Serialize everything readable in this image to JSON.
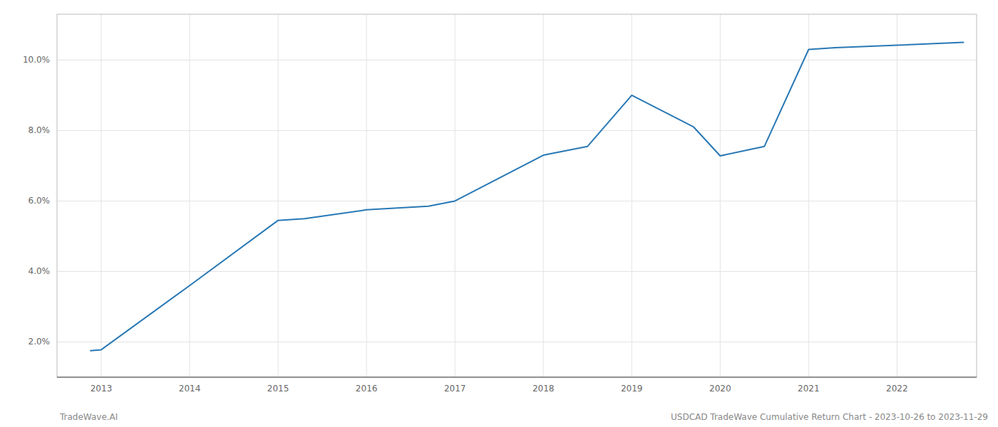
{
  "chart_data": {
    "type": "line",
    "x": [
      2012.88,
      2013,
      2014,
      2015,
      2015.3,
      2016,
      2016.7,
      2017,
      2018,
      2018.5,
      2019,
      2019.7,
      2020,
      2020.5,
      2021,
      2021.3,
      2022,
      2022.75
    ],
    "values": [
      1.75,
      1.78,
      3.6,
      5.45,
      5.5,
      5.75,
      5.85,
      6.0,
      7.3,
      7.55,
      9.0,
      8.1,
      7.28,
      7.55,
      10.3,
      10.35,
      10.42,
      10.5
    ],
    "color": "#2878b5",
    "xlim": [
      2012.5,
      2022.9
    ],
    "ylim": [
      1.0,
      11.3
    ],
    "xticks": [
      2013,
      2014,
      2015,
      2016,
      2017,
      2018,
      2019,
      2020,
      2021,
      2022
    ],
    "yticks": [
      {
        "value": 2.0,
        "label": "2.0%"
      },
      {
        "value": 4.0,
        "label": "4.0%"
      },
      {
        "value": 6.0,
        "label": "6.0%"
      },
      {
        "value": 8.0,
        "label": "8.0%"
      },
      {
        "value": 10.0,
        "label": "10.0%"
      }
    ],
    "grid": true,
    "annotations": [
      "TradeWave.AI",
      "USDCAD TradeWave Cumulative Return Chart - 2023-10-26 to 2023-11-29"
    ]
  }
}
